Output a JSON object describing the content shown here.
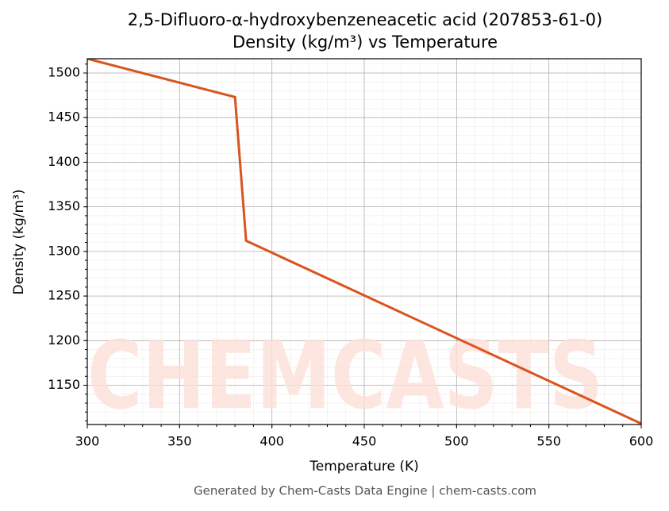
{
  "chart_data": {
    "type": "line",
    "title": "2,5-Difluoro-α-hydroxybenzeneacetic acid (207853-61-0)",
    "subtitle": "Density (kg/m³) vs Temperature",
    "x_label": "Temperature (K)",
    "y_label": "Density (kg/m³)",
    "footer": "Generated by Chem-Casts Data Engine | chem-casts.com",
    "watermark": "CHEMCASTS",
    "x": [
      300,
      380,
      386,
      600
    ],
    "series": [
      {
        "name": "Density",
        "color": "#d9541e",
        "values": [
          1516,
          1473,
          1312,
          1107
        ]
      }
    ],
    "xlim": [
      300,
      600
    ],
    "xticks": [
      300,
      350,
      400,
      450,
      500,
      550,
      600
    ],
    "ylim": [
      1106,
      1516
    ],
    "yticks": [
      1150,
      1200,
      1250,
      1300,
      1350,
      1400,
      1450,
      1500
    ],
    "grid": true
  }
}
